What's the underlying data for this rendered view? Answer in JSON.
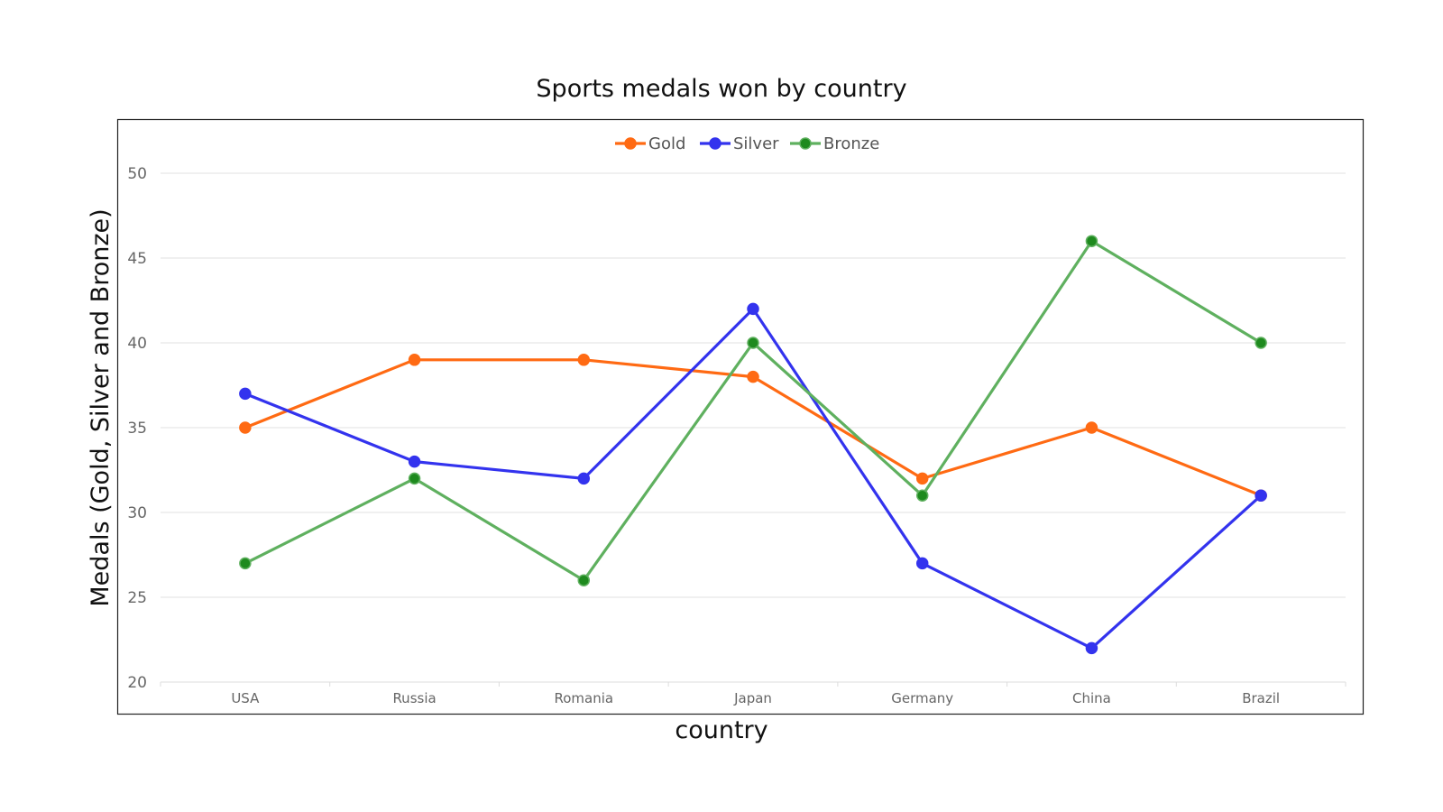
{
  "chart_data": {
    "type": "line",
    "title": "Sports medals won by country",
    "xlabel": "country",
    "ylabel": "Medals (Gold, Silver and Bronze)",
    "categories": [
      "USA",
      "Russia",
      "Romania",
      "Japan",
      "Germany",
      "China",
      "Brazil"
    ],
    "ylim": [
      20,
      50
    ],
    "yticks": [
      20,
      25,
      30,
      35,
      40,
      45,
      50
    ],
    "grid": true,
    "legend_position": "top-center",
    "series": [
      {
        "name": "Gold",
        "color": "#ff6a13",
        "values": [
          35,
          39,
          39,
          38,
          32,
          35,
          31
        ]
      },
      {
        "name": "Silver",
        "color": "#3333ee",
        "values": [
          37,
          33,
          32,
          42,
          27,
          22,
          31
        ]
      },
      {
        "name": "Bronze",
        "color": "#5fb05f",
        "marker_color": "#1e8a1e",
        "values": [
          27,
          32,
          26,
          40,
          31,
          46,
          40
        ]
      }
    ]
  }
}
